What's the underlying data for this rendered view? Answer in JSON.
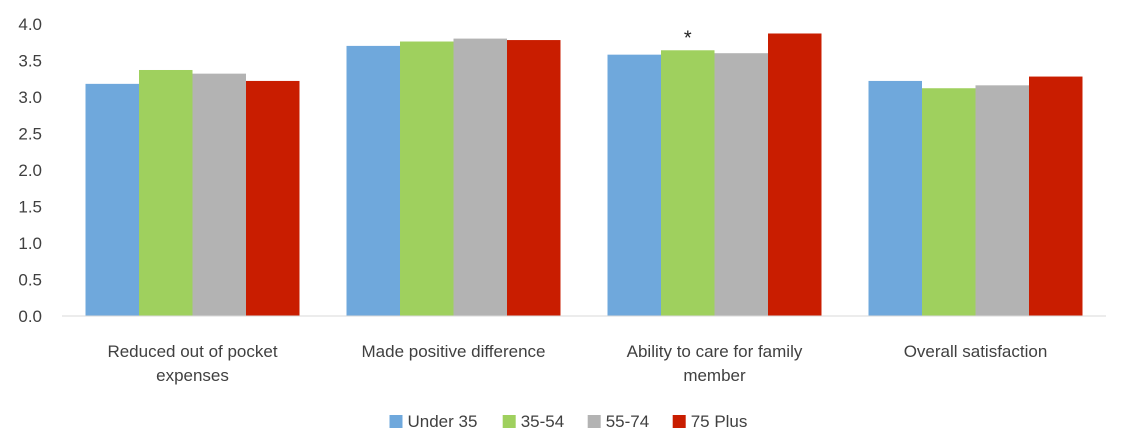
{
  "chart_data": {
    "type": "bar",
    "title": "",
    "xlabel": "",
    "ylabel": "",
    "ylim": [
      0,
      4.0
    ],
    "yticks": [
      "0.0",
      "0.5",
      "1.0",
      "1.5",
      "2.0",
      "2.5",
      "3.0",
      "3.5",
      "4.0"
    ],
    "grid": false,
    "legend_position": "bottom",
    "categories": [
      [
        "Reduced out of pocket",
        "expenses"
      ],
      [
        "Made positive difference"
      ],
      [
        "Ability to care for family",
        "member"
      ],
      [
        "Overall satisfaction"
      ]
    ],
    "series": [
      {
        "name": "Under 35",
        "color": "#6fa8dc",
        "values": [
          3.18,
          3.7,
          3.58,
          3.22
        ]
      },
      {
        "name": "35-54",
        "color": "#9fd05e",
        "values": [
          3.37,
          3.76,
          3.64,
          3.12
        ]
      },
      {
        "name": "55-74",
        "color": "#b3b3b3",
        "values": [
          3.32,
          3.8,
          3.6,
          3.16
        ]
      },
      {
        "name": "75 Plus",
        "color": "#c91d00",
        "values": [
          3.22,
          3.78,
          3.87,
          3.28
        ]
      }
    ],
    "annotations": [
      {
        "text": "*",
        "category_index": 2,
        "series_index": 1
      }
    ]
  }
}
